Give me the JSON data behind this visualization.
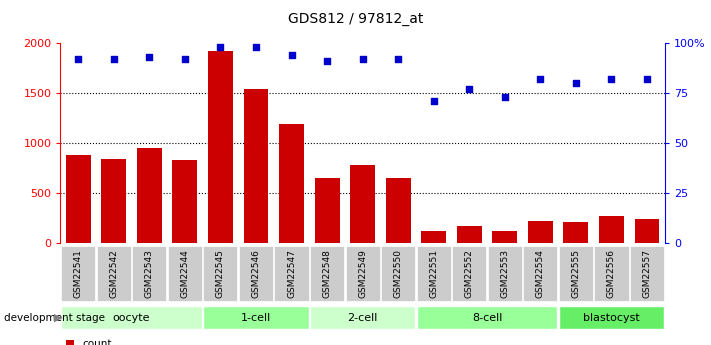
{
  "title": "GDS812 / 97812_at",
  "samples": [
    "GSM22541",
    "GSM22542",
    "GSM22543",
    "GSM22544",
    "GSM22545",
    "GSM22546",
    "GSM22547",
    "GSM22548",
    "GSM22549",
    "GSM22550",
    "GSM22551",
    "GSM22552",
    "GSM22553",
    "GSM22554",
    "GSM22555",
    "GSM22556",
    "GSM22557"
  ],
  "counts": [
    880,
    840,
    950,
    830,
    1920,
    1540,
    1190,
    650,
    780,
    650,
    120,
    170,
    120,
    220,
    210,
    270,
    245
  ],
  "percentile": [
    92,
    92,
    93,
    92,
    98,
    98,
    94,
    91,
    92,
    92,
    71,
    77,
    73,
    82,
    80,
    82,
    82
  ],
  "stages": [
    {
      "label": "oocyte",
      "start": 0,
      "end": 4,
      "color": "#ccffcc"
    },
    {
      "label": "1-cell",
      "start": 4,
      "end": 7,
      "color": "#99ff99"
    },
    {
      "label": "2-cell",
      "start": 7,
      "end": 10,
      "color": "#ccffcc"
    },
    {
      "label": "8-cell",
      "start": 10,
      "end": 14,
      "color": "#99ff99"
    },
    {
      "label": "blastocyst",
      "start": 14,
      "end": 17,
      "color": "#66ee66"
    }
  ],
  "bar_color": "#cc0000",
  "dot_color": "#0000cc",
  "ylim_left": [
    0,
    2000
  ],
  "ylim_right": [
    0,
    100
  ],
  "yticks_left": [
    0,
    500,
    1000,
    1500,
    2000
  ],
  "yticks_right": [
    0,
    25,
    50,
    75,
    100
  ],
  "ytick_labels_right": [
    "0",
    "25",
    "50",
    "75",
    "100%"
  ],
  "grid_values": [
    500,
    1000,
    1500
  ],
  "tick_label_bg": "#cccccc"
}
